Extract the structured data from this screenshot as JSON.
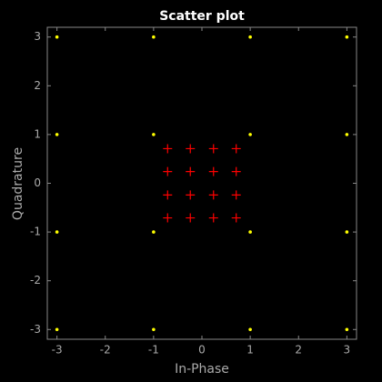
{
  "chart_data": {
    "type": "scatter",
    "title": "Scatter plot",
    "xlabel": "In-Phase",
    "ylabel": "Quadrature",
    "xlim": [
      -3.2,
      3.2
    ],
    "ylim": [
      -3.2,
      3.2
    ],
    "xticks": [
      -3,
      -2,
      -1,
      0,
      1,
      2,
      3
    ],
    "yticks": [
      -3,
      -2,
      -1,
      0,
      1,
      2,
      3
    ],
    "series": [
      {
        "color": "#ffff00",
        "marker": "dot",
        "x": [
          -3,
          -3,
          -3,
          -3,
          -1,
          -1,
          -1,
          -1,
          1,
          1,
          1,
          1,
          3,
          3,
          3,
          3
        ],
        "y": [
          3,
          1,
          -1,
          -3,
          3,
          1,
          -1,
          -3,
          3,
          1,
          -1,
          -3,
          3,
          1,
          -1,
          -3
        ]
      },
      {
        "color": "#ff0000",
        "marker": "plus",
        "x": [
          -0.71,
          -0.71,
          -0.71,
          -0.71,
          -0.24,
          -0.24,
          -0.24,
          -0.24,
          0.24,
          0.24,
          0.24,
          0.24,
          0.71,
          0.71,
          0.71,
          0.71
        ],
        "y": [
          0.71,
          0.24,
          -0.24,
          -0.71,
          0.71,
          0.24,
          -0.24,
          -0.71,
          0.71,
          0.24,
          -0.24,
          -0.71,
          0.71,
          0.24,
          -0.24,
          -0.71
        ]
      }
    ]
  }
}
